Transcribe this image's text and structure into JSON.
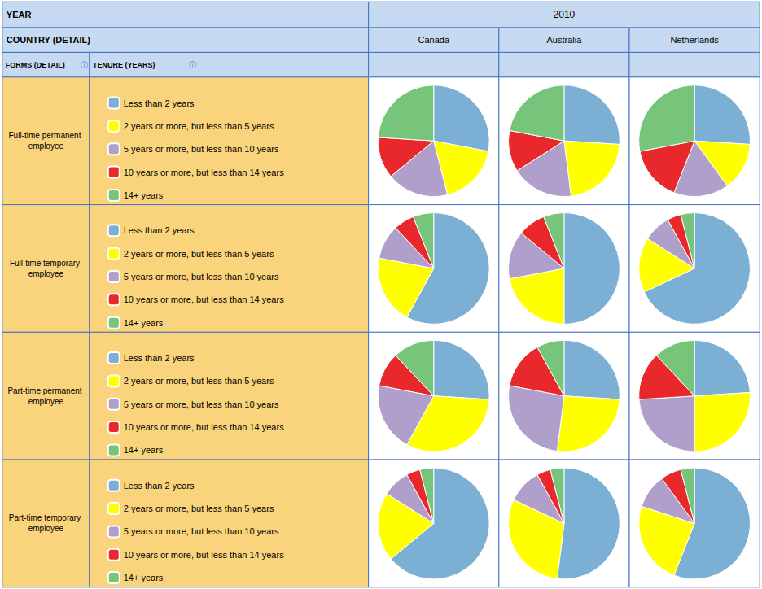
{
  "chart_data": {
    "type": "pie",
    "year_label": "YEAR",
    "year": "2010",
    "column_label": "COUNTRY (DETAIL)",
    "columns": [
      "Canada",
      "Australia",
      "Netherlands"
    ],
    "row_label": "FORMS (DETAIL)",
    "legend_label": "TENURE (YEARS)",
    "info_icon": "ⓘ",
    "rows": [
      "Full-time permanent employee",
      "Full-time temporary employee",
      "Part-time permanent employee",
      "Part-time temporary employee"
    ],
    "categories": [
      "Less than 2 years",
      "2 years or more, but less than 5 years",
      "5 years or more, but less than 10 years",
      "10 years or more, but less than 14 years",
      "14+ years"
    ],
    "colors": [
      "#7BAFD4",
      "#FFFF00",
      "#B09FCA",
      "#E8282A",
      "#77C57A"
    ],
    "values": [
      [
        [
          28,
          18,
          18,
          12,
          24
        ],
        [
          26,
          22,
          18,
          12,
          22
        ],
        [
          26,
          14,
          16,
          16,
          28
        ]
      ],
      [
        [
          58,
          20,
          10,
          6,
          6
        ],
        [
          50,
          22,
          14,
          8,
          6
        ],
        [
          68,
          16,
          8,
          4,
          4
        ]
      ],
      [
        [
          26,
          32,
          20,
          10,
          12
        ],
        [
          26,
          26,
          26,
          14,
          8
        ],
        [
          24,
          26,
          24,
          14,
          12
        ]
      ],
      [
        [
          64,
          20,
          8,
          4,
          4
        ],
        [
          52,
          30,
          10,
          4,
          4
        ],
        [
          56,
          24,
          10,
          6,
          4
        ]
      ]
    ],
    "header_color": "#C5D9F1",
    "row_color": "#FAD47C",
    "cell_color": "#FFFFFF",
    "border_color": "#4472C4",
    "info_color": "#4472C4",
    "legend": "left"
  }
}
